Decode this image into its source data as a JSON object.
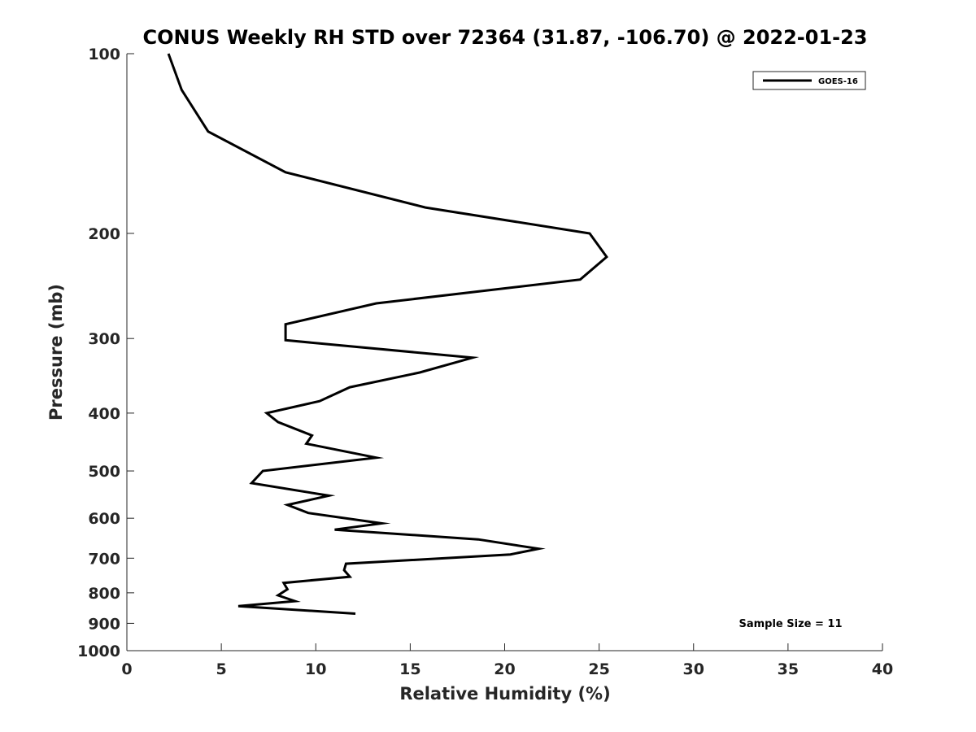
{
  "chart_data": {
    "type": "line",
    "title": "CONUS Weekly RH STD over 72364 (31.87, -106.70) @ 2022-01-23",
    "xlabel": "Relative Humidity (%)",
    "ylabel": "Pressure (mb)",
    "xlim": [
      0,
      40
    ],
    "ylim": [
      100,
      1000
    ],
    "yscale": "log",
    "y_reversed": true,
    "grid": false,
    "xticks": [
      0,
      5,
      10,
      15,
      20,
      25,
      30,
      35,
      40
    ],
    "xtick_labels": [
      "0",
      "5",
      "10",
      "15",
      "20",
      "25",
      "30",
      "35",
      "40"
    ],
    "yticks": [
      100,
      200,
      300,
      400,
      500,
      600,
      700,
      800,
      900,
      1000
    ],
    "ytick_labels": [
      "100",
      "200",
      "300",
      "400",
      "500",
      "600",
      "700",
      "800",
      "900",
      "1000"
    ],
    "legend_position": "top-right",
    "annotation": "Sample Size = 11",
    "colors": {
      "series": "#000000",
      "axis": "#262626"
    },
    "series": [
      {
        "name": "GOES-16",
        "x": [
          2.2,
          2.9,
          4.3,
          8.4,
          15.8,
          24.5,
          25.4,
          24.0,
          13.2,
          8.4,
          8.4,
          18.3,
          15.5,
          11.8,
          10.2,
          7.4,
          8.0,
          9.8,
          9.5,
          13.2,
          7.2,
          6.6,
          10.7,
          8.5,
          9.6,
          13.5,
          11.0,
          18.6,
          21.8,
          20.3,
          11.6,
          11.5,
          11.8,
          8.3,
          8.5,
          8.0,
          8.9,
          5.9,
          12.1
        ],
        "y": [
          100,
          115,
          135,
          158,
          181,
          200,
          219,
          239,
          262,
          284,
          302,
          323,
          342,
          362,
          382,
          400,
          414,
          436,
          450,
          475,
          500,
          524,
          550,
          570,
          588,
          612,
          627,
          651,
          675,
          690,
          715,
          733,
          752,
          770,
          789,
          808,
          826,
          842,
          867
        ]
      }
    ]
  }
}
